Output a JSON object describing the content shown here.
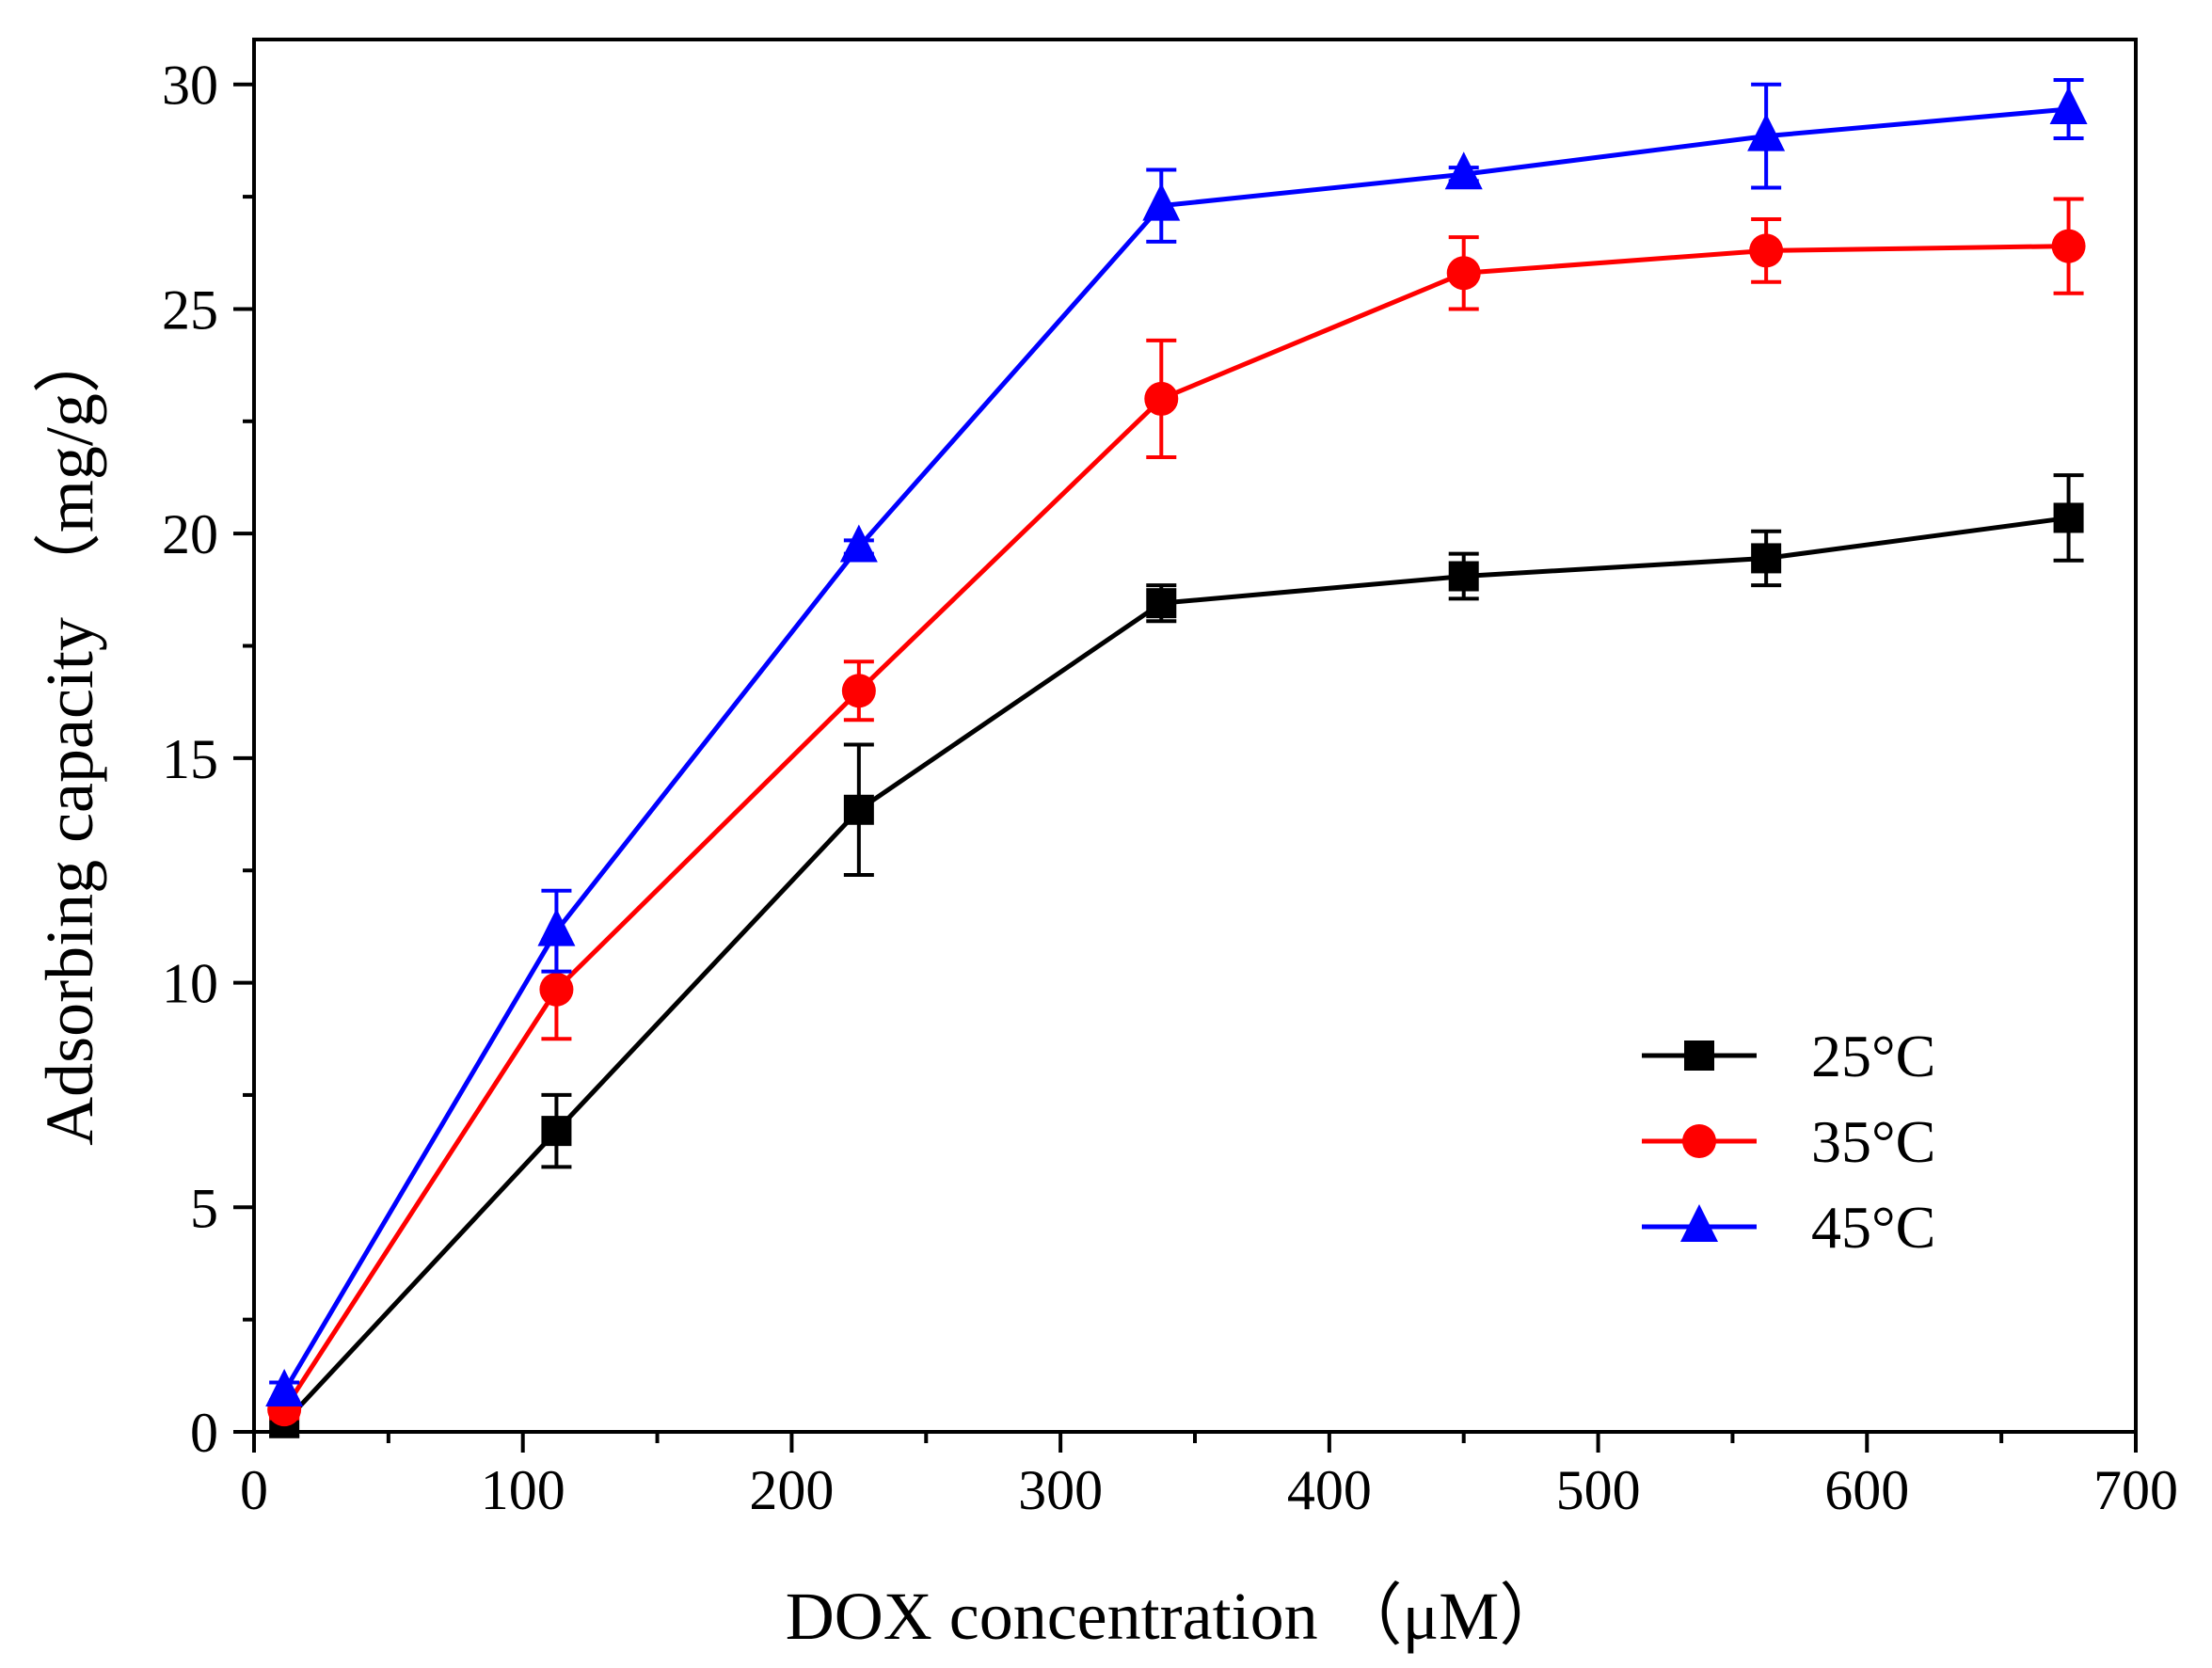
{
  "chart_data": {
    "type": "line",
    "title": "",
    "xlabel": "DOX concentration （μM）",
    "ylabel": "Adsorbing capacity （mg/g）",
    "xlim": [
      0,
      700
    ],
    "ylim": [
      0,
      31
    ],
    "x_ticks": [
      0,
      100,
      200,
      300,
      400,
      500,
      600,
      700
    ],
    "x_tick_labels": [
      "0",
      "100",
      "200",
      "300",
      "400",
      "500",
      "600",
      "700"
    ],
    "y_ticks": [
      0,
      5,
      10,
      15,
      20,
      25,
      30
    ],
    "y_tick_labels": [
      "0",
      "5",
      "10",
      "15",
      "20",
      "25",
      "30"
    ],
    "grid": false,
    "legend_position": "bottom-right",
    "x": [
      11.25,
      112.5,
      225,
      337.5,
      450,
      562.5,
      675
    ],
    "series": [
      {
        "name": "25°C",
        "color": "#000000",
        "marker": "square",
        "values": [
          0.2,
          6.7,
          13.85,
          18.45,
          19.05,
          19.45,
          20.35
        ],
        "errors": [
          0.3,
          0.8,
          1.45,
          0.4,
          0.5,
          0.6,
          0.95
        ]
      },
      {
        "name": "35°C",
        "color": "#ff0000",
        "marker": "circle",
        "values": [
          0.5,
          9.85,
          16.5,
          23.0,
          25.8,
          26.3,
          26.4
        ],
        "errors": [
          0.2,
          1.1,
          0.65,
          1.3,
          0.8,
          0.7,
          1.05
        ]
      },
      {
        "name": "45°C",
        "color": "#0000ff",
        "marker": "triangle",
        "values": [
          0.9,
          11.15,
          19.7,
          27.3,
          28.0,
          28.85,
          29.45
        ],
        "errors": [
          0.2,
          0.9,
          0.15,
          0.8,
          0.15,
          1.15,
          0.65
        ]
      }
    ]
  }
}
